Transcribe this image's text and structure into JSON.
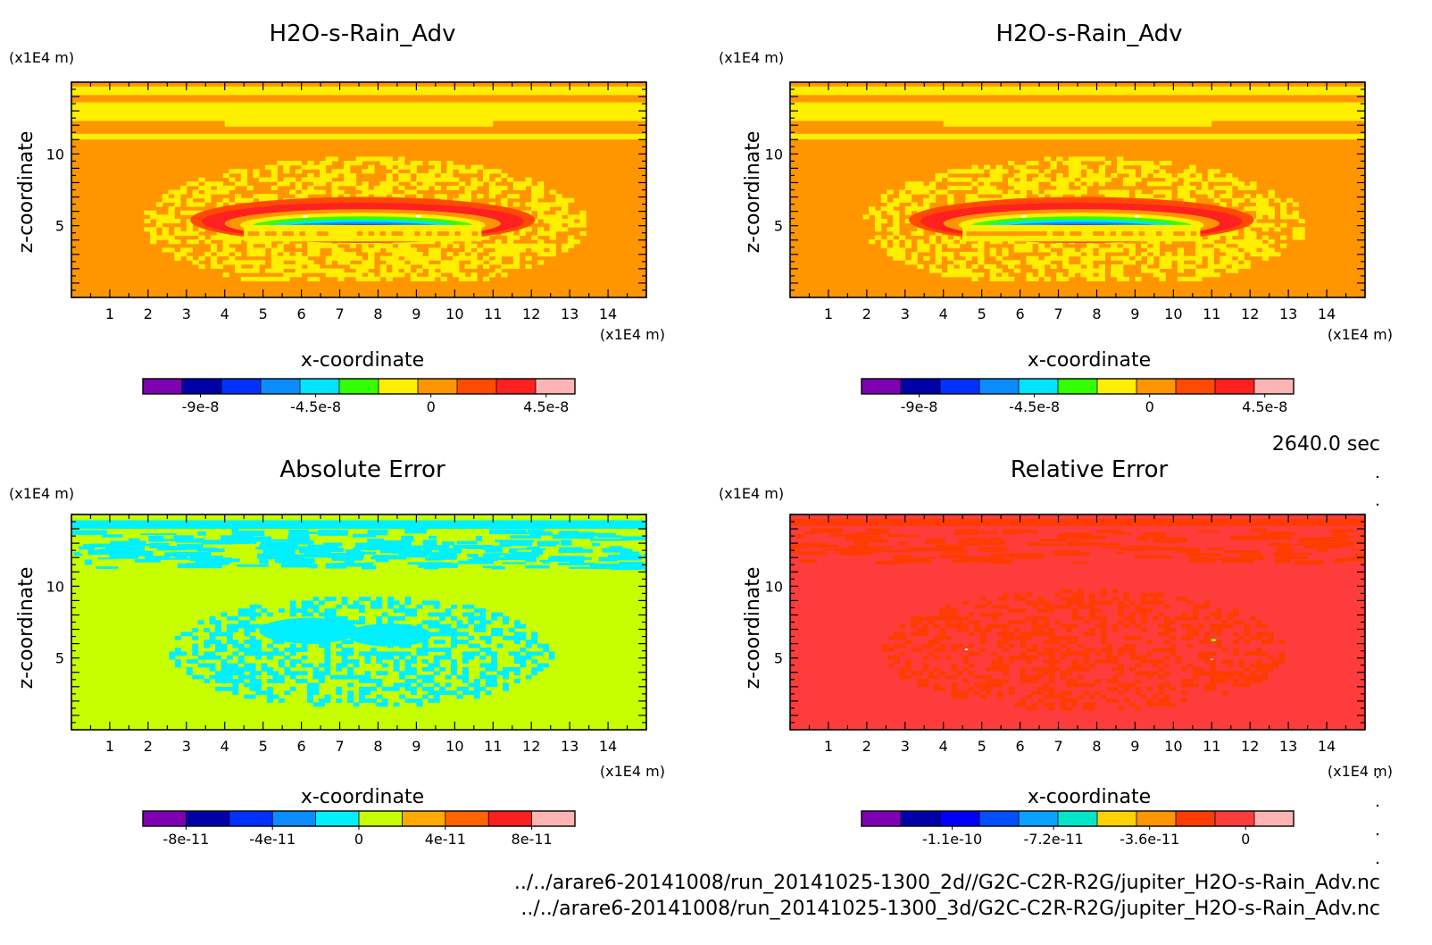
{
  "time_label": "2640.0 sec",
  "footer": [
    "../../arare6-20141008/run_20141025-1300_2d//G2C-C2R-R2G/jupiter_H2O-s-Rain_Adv.nc",
    "../../arare6-20141008/run_20141025-1300_3d/G2C-C2R-R2G/jupiter_H2O-s-Rain_Adv.nc"
  ],
  "chart_data": [
    {
      "type": "heatmap",
      "title": "H2O-s-Rain_Adv",
      "xlabel": "x-coordinate",
      "ylabel": "z-coordinate",
      "x_unit": "(x1E4 m)",
      "y_unit": "(x1E4 m)",
      "x_ticks": [
        "1",
        "2",
        "3",
        "4",
        "5",
        "6",
        "7",
        "8",
        "9",
        "10",
        "11",
        "12",
        "13",
        "14"
      ],
      "y_ticks": [
        "5",
        "10"
      ],
      "xlim": [
        0,
        15
      ],
      "ylim": [
        0,
        15
      ],
      "colorbar": {
        "colors": [
          "#7f00b0",
          "#0000a8",
          "#0032ff",
          "#0a8cff",
          "#00e4ff",
          "#32ff00",
          "#ffee00",
          "#ff9600",
          "#ff4a00",
          "#ff2020",
          "#ffb4b4"
        ],
        "tick_labels": [
          "-9e-8",
          "-4.5e-8",
          "0",
          "4.5e-8"
        ],
        "tick_values": [
          -9e-08,
          -4.5e-08,
          0,
          4.5e-08
        ],
        "range": [
          -1.125e-07,
          5.625e-08
        ]
      },
      "background_color": "#ff9600",
      "pattern": "rain"
    },
    {
      "type": "heatmap",
      "title": "H2O-s-Rain_Adv",
      "xlabel": "x-coordinate",
      "ylabel": "z-coordinate",
      "x_unit": "(x1E4 m)",
      "y_unit": "(x1E4 m)",
      "x_ticks": [
        "1",
        "2",
        "3",
        "4",
        "5",
        "6",
        "7",
        "8",
        "9",
        "10",
        "11",
        "12",
        "13",
        "14"
      ],
      "y_ticks": [
        "5",
        "10"
      ],
      "xlim": [
        0,
        15
      ],
      "ylim": [
        0,
        15
      ],
      "colorbar": {
        "colors": [
          "#7f00b0",
          "#0000a8",
          "#0032ff",
          "#0a8cff",
          "#00e4ff",
          "#32ff00",
          "#ffee00",
          "#ff9600",
          "#ff4a00",
          "#ff2020",
          "#ffb4b4"
        ],
        "tick_labels": [
          "-9e-8",
          "-4.5e-8",
          "0",
          "4.5e-8"
        ],
        "tick_values": [
          -9e-08,
          -4.5e-08,
          0,
          4.5e-08
        ],
        "range": [
          -1.125e-07,
          5.625e-08
        ]
      },
      "background_color": "#ff9600",
      "pattern": "rain"
    },
    {
      "type": "heatmap",
      "title": "Absolute Error",
      "xlabel": "x-coordinate",
      "ylabel": "z-coordinate",
      "x_unit": "(x1E4 m)",
      "y_unit": "(x1E4 m)",
      "x_ticks": [
        "1",
        "2",
        "3",
        "4",
        "5",
        "6",
        "7",
        "8",
        "9",
        "10",
        "11",
        "12",
        "13",
        "14"
      ],
      "y_ticks": [
        "5",
        "10"
      ],
      "xlim": [
        0,
        15
      ],
      "ylim": [
        0,
        15
      ],
      "colorbar": {
        "colors": [
          "#7f00b0",
          "#0000a8",
          "#0032ff",
          "#0a8cff",
          "#00f0ff",
          "#c8ff00",
          "#ffaa00",
          "#ff6400",
          "#ff1e1e",
          "#ffb4b4"
        ],
        "tick_labels": [
          "-8e-11",
          "-4e-11",
          "0",
          "4e-11",
          "8e-11"
        ],
        "tick_values": [
          -8e-11,
          -4e-11,
          0,
          4e-11,
          8e-11
        ],
        "range": [
          -1e-10,
          1e-10
        ]
      },
      "background_color": "#c8ff00",
      "pattern": "abs"
    },
    {
      "type": "heatmap",
      "title": "Relative Error",
      "xlabel": "x-coordinate",
      "ylabel": "z-coordinate",
      "x_unit": "(x1E4 m)",
      "y_unit": "(x1E4 m)",
      "x_ticks": [
        "1",
        "2",
        "3",
        "4",
        "5",
        "6",
        "7",
        "8",
        "9",
        "10",
        "11",
        "12",
        "13",
        "14"
      ],
      "y_ticks": [
        "5",
        "10"
      ],
      "xlim": [
        0,
        15
      ],
      "ylim": [
        0,
        15
      ],
      "colorbar": {
        "colors": [
          "#7f00b0",
          "#0000a8",
          "#0000ff",
          "#0050ff",
          "#0aa0ff",
          "#00e6c8",
          "#ffd200",
          "#ff9600",
          "#ff3c00",
          "#ff3c3c",
          "#ffb4b4"
        ],
        "tick_labels": [
          "-1.1e-10",
          "-7.2e-11",
          "-3.6e-11",
          "0"
        ],
        "tick_values": [
          -1.1e-10,
          -7.2e-11,
          -3.6e-11,
          0
        ],
        "range": [
          -1.44e-10,
          1.8e-11
        ]
      },
      "background_color": "#ff3c3c",
      "pattern": "rel"
    }
  ]
}
